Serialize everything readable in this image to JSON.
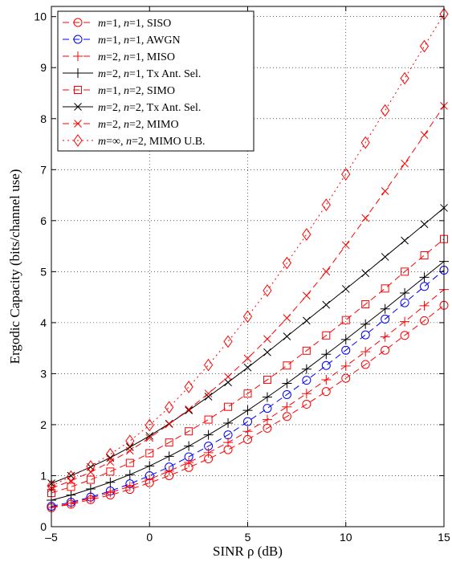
{
  "chart_data": {
    "type": "line",
    "xlabel": "SINR  ρ  (dB)",
    "ylabel": "Ergodic Capacity (bits/channel use)",
    "xlim": [
      -5,
      15
    ],
    "ylim": [
      0,
      10.2
    ],
    "xticks": [
      -5,
      0,
      5,
      10,
      15
    ],
    "yticks": [
      0,
      1,
      2,
      3,
      4,
      5,
      6,
      7,
      8,
      9,
      10
    ],
    "xtick_labels": [
      "–5",
      "0",
      "5",
      "10",
      "15"
    ],
    "ytick_labels": [
      "0",
      "1",
      "2",
      "3",
      "4",
      "5",
      "6",
      "7",
      "8",
      "9",
      "10"
    ],
    "grid": true,
    "legend_position": "top-left",
    "x": [
      -5,
      -4,
      -3,
      -2,
      -1,
      0,
      1,
      2,
      3,
      4,
      5,
      6,
      7,
      8,
      9,
      10,
      11,
      12,
      13,
      14,
      15
    ],
    "series": [
      {
        "name": "m=1, n=1, SISO",
        "legend": {
          "m": "m",
          "mval": "=1, ",
          "n": "n",
          "rest": "=1, SISO"
        },
        "color": "#ff0000",
        "dash": "8,5",
        "marker": "circle",
        "values": [
          0.37,
          0.44,
          0.53,
          0.62,
          0.73,
          0.86,
          1.0,
          1.16,
          1.33,
          1.51,
          1.71,
          1.93,
          2.16,
          2.4,
          2.65,
          2.91,
          3.18,
          3.46,
          3.75,
          4.04,
          4.34
        ]
      },
      {
        "name": "m=1, n=1, AWGN",
        "legend": {
          "m": "m",
          "mval": "=1, ",
          "n": "n",
          "rest": "=1, AWGN"
        },
        "color": "#0000ff",
        "dash": "8,5",
        "marker": "circle",
        "values": [
          0.4,
          0.48,
          0.58,
          0.7,
          0.84,
          1.0,
          1.17,
          1.37,
          1.58,
          1.8,
          2.06,
          2.32,
          2.59,
          2.87,
          3.16,
          3.46,
          3.76,
          4.07,
          4.39,
          4.71,
          5.03
        ]
      },
      {
        "name": "m=2, n=1, MISO",
        "legend": {
          "m": "m",
          "mval": "=2, ",
          "n": "n",
          "rest": "=1, MISO"
        },
        "color": "#ff0000",
        "dash": "8,5",
        "marker": "plus",
        "values": [
          0.38,
          0.46,
          0.56,
          0.67,
          0.79,
          0.93,
          1.09,
          1.26,
          1.45,
          1.65,
          1.87,
          2.1,
          2.35,
          2.61,
          2.88,
          3.15,
          3.43,
          3.72,
          4.02,
          4.33,
          4.65
        ]
      },
      {
        "name": "m=2, n=1, Tx Ant. Sel.",
        "legend": {
          "m": "m",
          "mval": "=2, ",
          "n": "n",
          "rest": "=1, Tx Ant. Sel."
        },
        "color": "#000000",
        "dash": "",
        "marker": "plus",
        "values": [
          0.52,
          0.62,
          0.74,
          0.87,
          1.02,
          1.19,
          1.38,
          1.58,
          1.8,
          2.03,
          2.28,
          2.54,
          2.81,
          3.09,
          3.38,
          3.67,
          3.97,
          4.27,
          4.58,
          4.89,
          5.2
        ]
      },
      {
        "name": "m=1, n=2, SIMO",
        "legend": {
          "m": "m",
          "mval": "=1, ",
          "n": "n",
          "rest": "=2, SIMO"
        },
        "color": "#ff0000",
        "dash": "8,5",
        "marker": "square",
        "values": [
          0.66,
          0.78,
          0.92,
          1.08,
          1.25,
          1.44,
          1.65,
          1.87,
          2.1,
          2.35,
          2.61,
          2.88,
          3.16,
          3.45,
          3.75,
          4.05,
          4.36,
          4.67,
          5.0,
          5.32,
          5.64
        ]
      },
      {
        "name": "m=2, n=2, Tx Ant. Sel.",
        "legend": {
          "m": "m",
          "mval": "=2, ",
          "n": "n",
          "rest": "=2, Tx Ant. Sel."
        },
        "color": "#000000",
        "dash": "",
        "marker": "x",
        "values": [
          0.85,
          1.0,
          1.17,
          1.35,
          1.56,
          1.78,
          2.02,
          2.28,
          2.55,
          2.83,
          3.12,
          3.42,
          3.73,
          4.04,
          4.35,
          4.66,
          4.97,
          5.29,
          5.61,
          5.93,
          6.25
        ]
      },
      {
        "name": "m=2, n=2, MIMO",
        "legend": {
          "m": "m",
          "mval": "=2, ",
          "n": "n",
          "rest": "=2, MIMO"
        },
        "color": "#ff0000",
        "dash": "8,5",
        "marker": "x",
        "values": [
          0.75,
          0.9,
          1.07,
          1.27,
          1.49,
          1.74,
          2.01,
          2.3,
          2.61,
          2.94,
          3.3,
          3.68,
          4.09,
          4.53,
          5.0,
          5.52,
          6.05,
          6.58,
          7.12,
          7.68,
          8.25
        ]
      },
      {
        "name": "m=∞, n=2, MIMO U.B.",
        "legend": {
          "m": "m",
          "mval": "=∞, ",
          "n": "n",
          "rest": "=2, MIMO U.B."
        },
        "color": "#ff0000",
        "dash": "2,4",
        "marker": "diamond",
        "values": [
          0.8,
          0.98,
          1.18,
          1.42,
          1.68,
          1.99,
          2.34,
          2.74,
          3.17,
          3.63,
          4.12,
          4.63,
          5.17,
          5.73,
          6.31,
          6.91,
          7.53,
          8.16,
          8.79,
          9.42,
          10.05
        ]
      }
    ]
  }
}
